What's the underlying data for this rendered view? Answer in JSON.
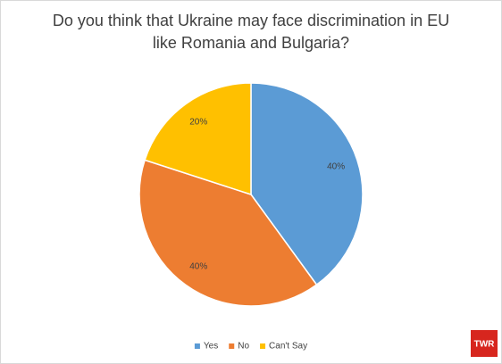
{
  "chart_data": {
    "type": "pie",
    "title": [
      "Do you think that Ukraine may face discrimination in EU",
      "like Romania and Bulgaria?"
    ],
    "categories": [
      "Yes",
      "No",
      "Can't Say"
    ],
    "values": [
      40,
      40,
      20
    ],
    "value_labels": [
      "40%",
      "40%",
      "20%"
    ],
    "colors": [
      "#5b9bd5",
      "#ed7d31",
      "#ffc000"
    ],
    "legend": "bottom"
  },
  "logo": "TWR"
}
